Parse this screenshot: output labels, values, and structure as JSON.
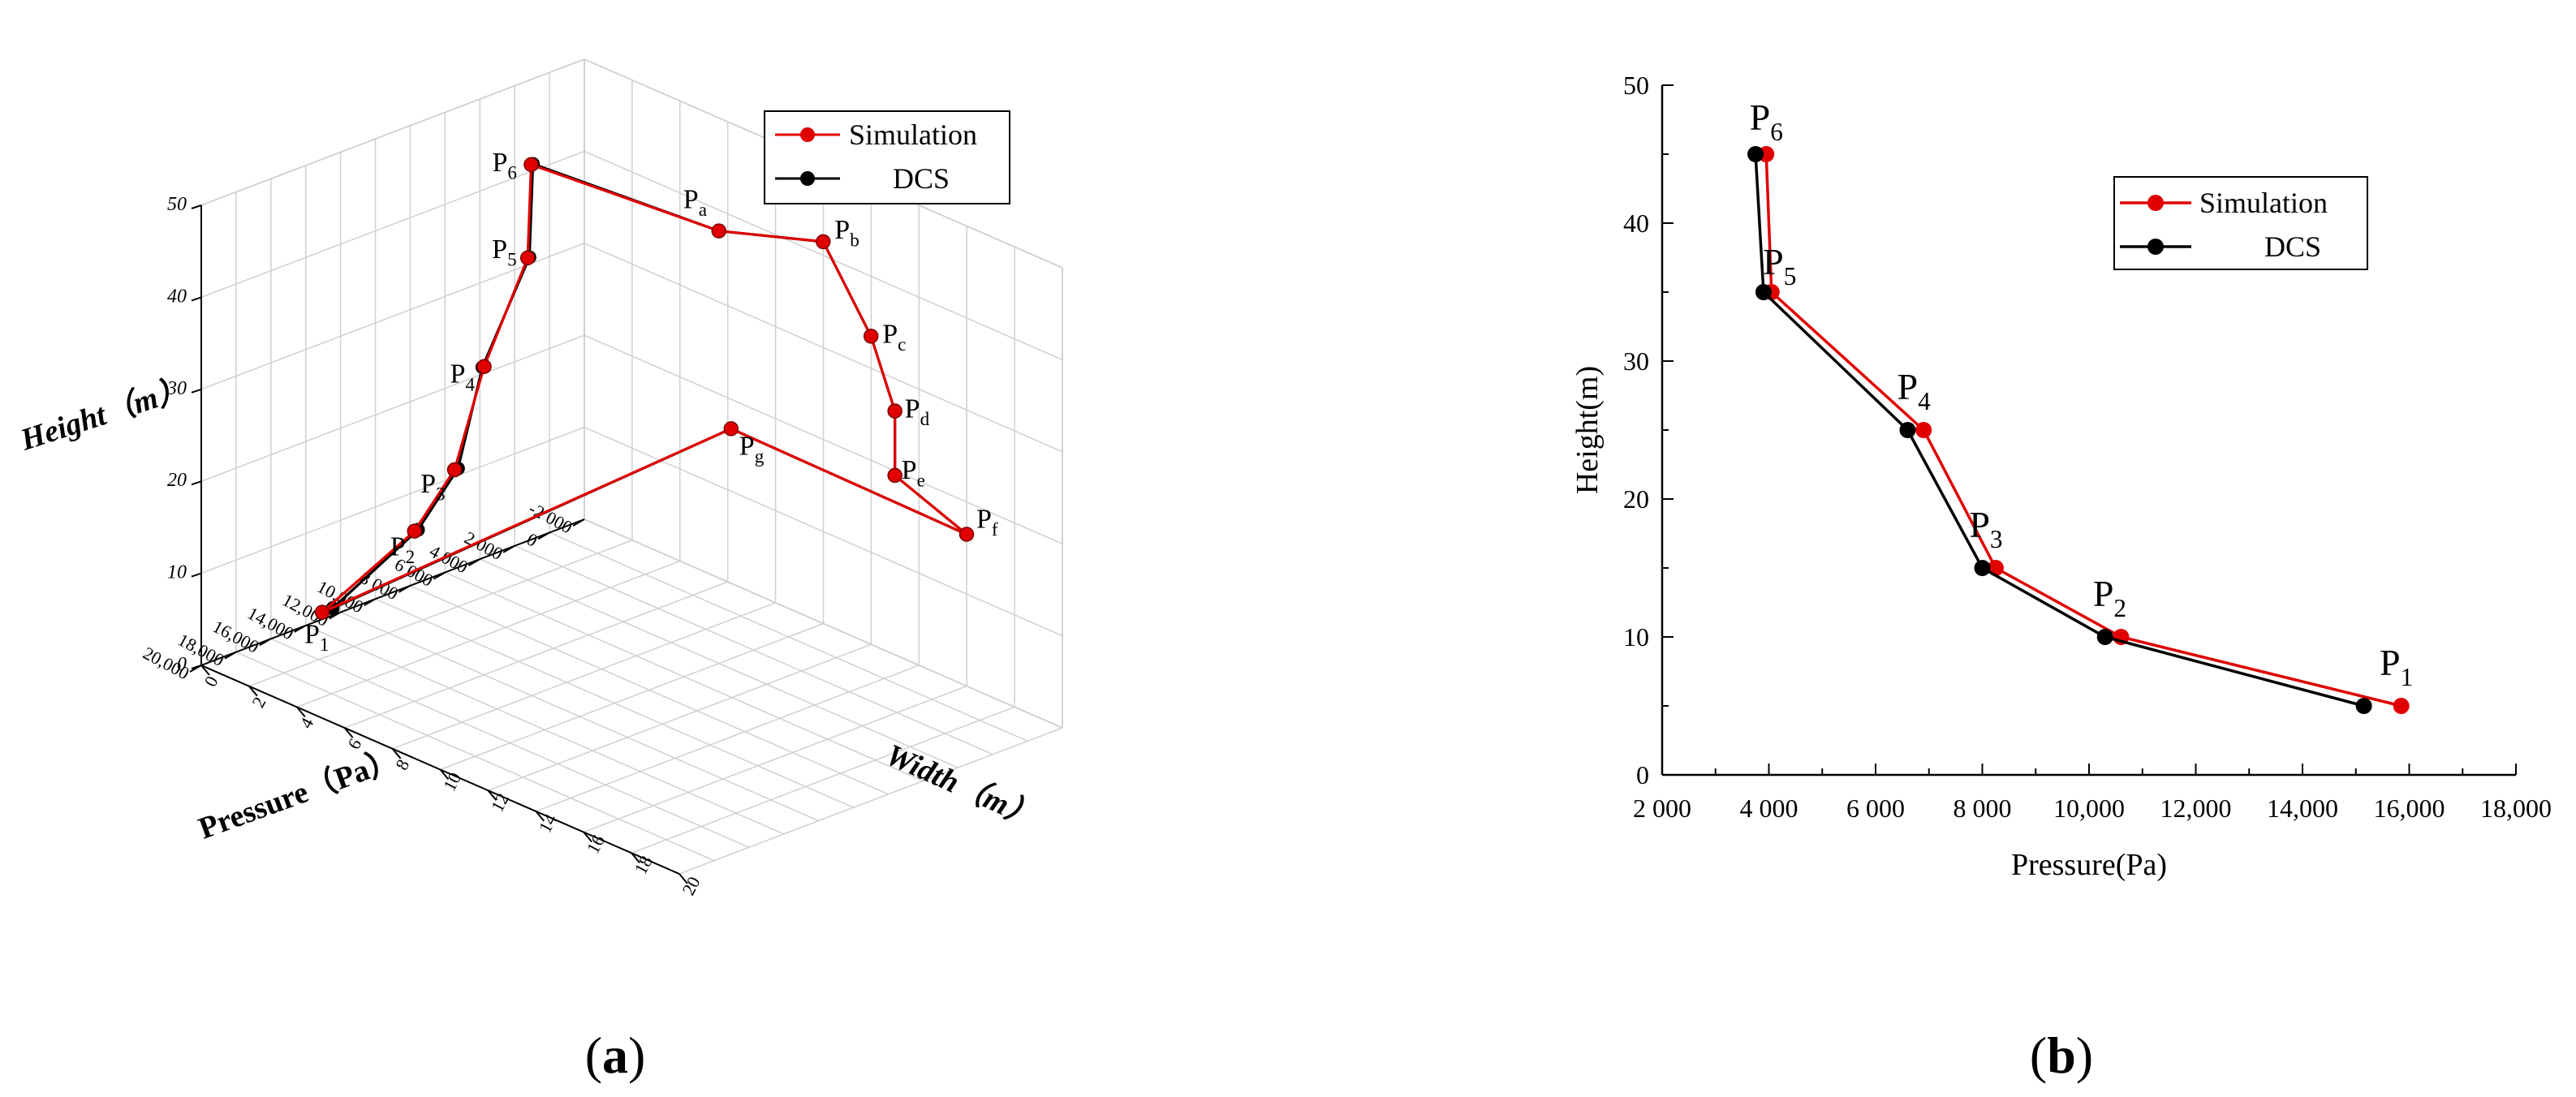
{
  "panels": {
    "a": {
      "caption_open": "(",
      "caption_letter": "a",
      "caption_close": ")"
    },
    "b": {
      "caption_open": "(",
      "caption_letter": "b",
      "caption_close": ")"
    }
  },
  "colors": {
    "simulation": "#e00000",
    "dcs": "#000000",
    "grid": "#d0d0d0",
    "axis": "#000000"
  },
  "chart_data": [
    {
      "type": "line",
      "projection": "3d",
      "xlabel": "Pressure（Pa）",
      "ylabel": "Width（m）",
      "zlabel": "Height（m）",
      "xlim": [
        -2000,
        20000
      ],
      "ylim": [
        0,
        20
      ],
      "zlim": [
        0,
        50
      ],
      "x_ticks": [
        "-2 000",
        "0",
        "2 000",
        "4 000",
        "6 000",
        "8 000",
        "10,000",
        "12,000",
        "14,000",
        "16,000",
        "18,000",
        "20,000"
      ],
      "y_ticks": [
        "0",
        "2",
        "4",
        "6",
        "8",
        "10",
        "12",
        "14",
        "16",
        "18",
        "20"
      ],
      "z_ticks": [
        "0",
        "10",
        "20",
        "30",
        "40",
        "50"
      ],
      "grid": true,
      "legend_position": "top-right",
      "point_labels": [
        {
          "base": "P",
          "sub": "1"
        },
        {
          "base": "P",
          "sub": "2"
        },
        {
          "base": "P",
          "sub": "3"
        },
        {
          "base": "P",
          "sub": "4"
        },
        {
          "base": "P",
          "sub": "5"
        },
        {
          "base": "P",
          "sub": "6"
        },
        {
          "base": "P",
          "sub": "a"
        },
        {
          "base": "P",
          "sub": "b"
        },
        {
          "base": "P",
          "sub": "c"
        },
        {
          "base": "P",
          "sub": "d"
        },
        {
          "base": "P",
          "sub": "e"
        },
        {
          "base": "P",
          "sub": "f"
        },
        {
          "base": "P",
          "sub": "g"
        }
      ],
      "series": [
        {
          "name": "Simulation",
          "color": "#e00000",
          "points": [
            [
              15800,
              2,
              5
            ],
            [
              10500,
              2,
              10
            ],
            [
              8200,
              2,
              15
            ],
            [
              6500,
              2,
              25
            ],
            [
              4000,
              2,
              35
            ],
            [
              3800,
              2,
              45
            ],
            [
              4000,
              10,
              47
            ],
            [
              3500,
              14,
              50
            ],
            [
              3500,
              16,
              42
            ],
            [
              3500,
              17,
              35
            ],
            [
              3500,
              17,
              28
            ],
            [
              3500,
              20,
              25
            ],
            [
              3300,
              10,
              25
            ],
            [
              15800,
              2,
              5
            ]
          ]
        },
        {
          "name": "DCS",
          "color": "#000000",
          "points": [
            [
              15200,
              2,
              5
            ],
            [
              10300,
              2,
              10
            ],
            [
              8000,
              2,
              15
            ],
            [
              6600,
              2,
              25
            ],
            [
              3900,
              2,
              35
            ],
            [
              3700,
              2,
              45
            ],
            [
              4000,
              10,
              47
            ],
            [
              3500,
              14,
              50
            ],
            [
              3500,
              16,
              42
            ],
            [
              3500,
              17,
              35
            ],
            [
              3500,
              17,
              28
            ],
            [
              3500,
              20,
              25
            ],
            [
              3300,
              10,
              25
            ],
            [
              15200,
              2,
              5
            ]
          ]
        }
      ]
    },
    {
      "type": "line",
      "xlabel": "Pressure(Pa)",
      "ylabel": "Height(m)",
      "xlim": [
        2000,
        18000
      ],
      "ylim": [
        0,
        50
      ],
      "x_ticks": [
        "2 000",
        "4 000",
        "6 000",
        "8 000",
        "10,000",
        "12,000",
        "14,000",
        "16,000",
        "18,000"
      ],
      "y_ticks": [
        "0",
        "10",
        "20",
        "30",
        "40",
        "50"
      ],
      "grid": false,
      "legend_position": "top-right",
      "point_labels": [
        {
          "base": "P",
          "sub": "1"
        },
        {
          "base": "P",
          "sub": "2"
        },
        {
          "base": "P",
          "sub": "3"
        },
        {
          "base": "P",
          "sub": "4"
        },
        {
          "base": "P",
          "sub": "5"
        },
        {
          "base": "P",
          "sub": "6"
        }
      ],
      "series": [
        {
          "name": "Simulation",
          "color": "#e00000",
          "x": [
            15850,
            10600,
            8250,
            6900,
            4050,
            3950
          ],
          "y": [
            5,
            10,
            15,
            25,
            35,
            45
          ]
        },
        {
          "name": "DCS",
          "color": "#000000",
          "x": [
            15150,
            10300,
            8000,
            6600,
            3900,
            3750
          ],
          "y": [
            5,
            10,
            15,
            25,
            35,
            45
          ]
        }
      ]
    }
  ]
}
